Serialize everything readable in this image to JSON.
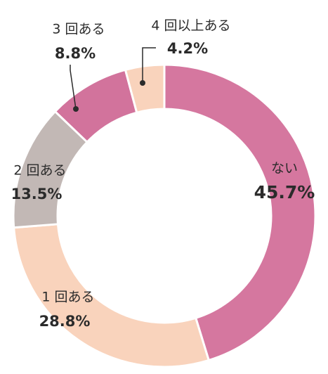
{
  "chart_data": {
    "type": "donut",
    "categories": [
      "ない",
      "1 回ある",
      "2 回ある",
      "3 回ある",
      "4 回以上ある"
    ],
    "values": [
      45.7,
      28.8,
      13.5,
      8.8,
      4.2
    ],
    "value_labels": [
      "45.7%",
      "28.8%",
      "13.5%",
      "8.8%",
      "4.2%"
    ],
    "colors": [
      "#d5779f",
      "#f9d3bc",
      "#c2b8b5",
      "#d2739c",
      "#f9d3bc"
    ]
  }
}
